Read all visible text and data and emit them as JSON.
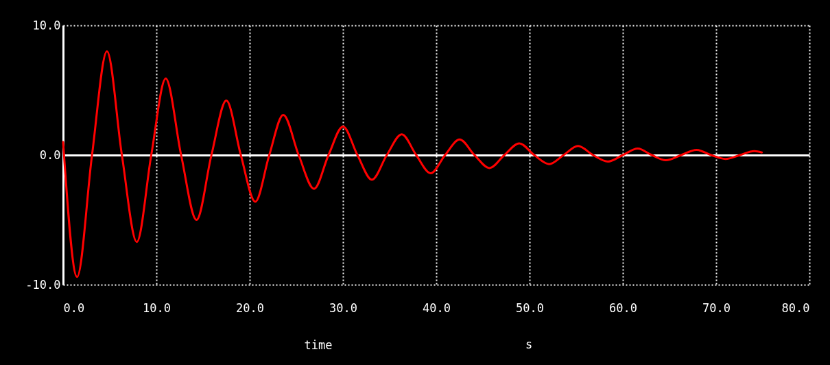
{
  "chart_data": {
    "type": "line",
    "xlabel": "time",
    "annotations": [
      "s"
    ],
    "xlim": [
      0,
      80
    ],
    "ylim": [
      -10,
      10
    ],
    "xticks": [
      {
        "value": 0,
        "label": "0.0"
      },
      {
        "value": 10,
        "label": "10.0"
      },
      {
        "value": 20,
        "label": "20.0"
      },
      {
        "value": 30,
        "label": "30.0"
      },
      {
        "value": 40,
        "label": "40.0"
      },
      {
        "value": 50,
        "label": "50.0"
      },
      {
        "value": 60,
        "label": "60.0"
      },
      {
        "value": 70,
        "label": "70.0"
      },
      {
        "value": 80,
        "label": "80.0"
      }
    ],
    "yticks": [
      {
        "value": -10,
        "label": "-10.0"
      },
      {
        "value": 0,
        "label": "0.0"
      },
      {
        "value": 10,
        "label": "10.0"
      }
    ],
    "grid": true,
    "x": [
      0,
      1.5,
      3.1,
      4.7,
      6.3,
      7.9,
      9.45,
      11.0,
      12.65,
      14.3,
      15.9,
      17.5,
      19.05,
      20.6,
      22.1,
      23.6,
      25.25,
      26.9,
      28.45,
      30.0,
      31.55,
      33.1,
      34.7,
      36.3,
      37.85,
      39.4,
      40.95,
      42.5,
      44.1,
      45.7,
      47.3,
      48.9,
      50.5,
      52.1,
      53.65,
      55.2,
      56.8,
      58.4,
      60.0,
      61.6,
      63.1,
      64.6,
      66.25,
      67.9,
      69.45,
      71.0,
      72.55,
      74.1,
      74.9
    ],
    "series": [
      {
        "color": "#ff0000",
        "values": [
          1.0,
          -9.4,
          0,
          8.0,
          0,
          -6.7,
          0,
          5.9,
          0,
          -5.0,
          0,
          4.2,
          0,
          -3.6,
          0,
          3.1,
          0,
          -2.6,
          0,
          2.2,
          0,
          -1.9,
          0,
          1.6,
          0,
          -1.4,
          0,
          1.2,
          0,
          -1.0,
          0,
          0.9,
          0,
          -0.7,
          0,
          0.7,
          0,
          -0.5,
          0,
          0.5,
          0,
          -0.4,
          0,
          0.4,
          0,
          -0.3,
          0,
          0.3,
          0.2
        ]
      }
    ]
  }
}
